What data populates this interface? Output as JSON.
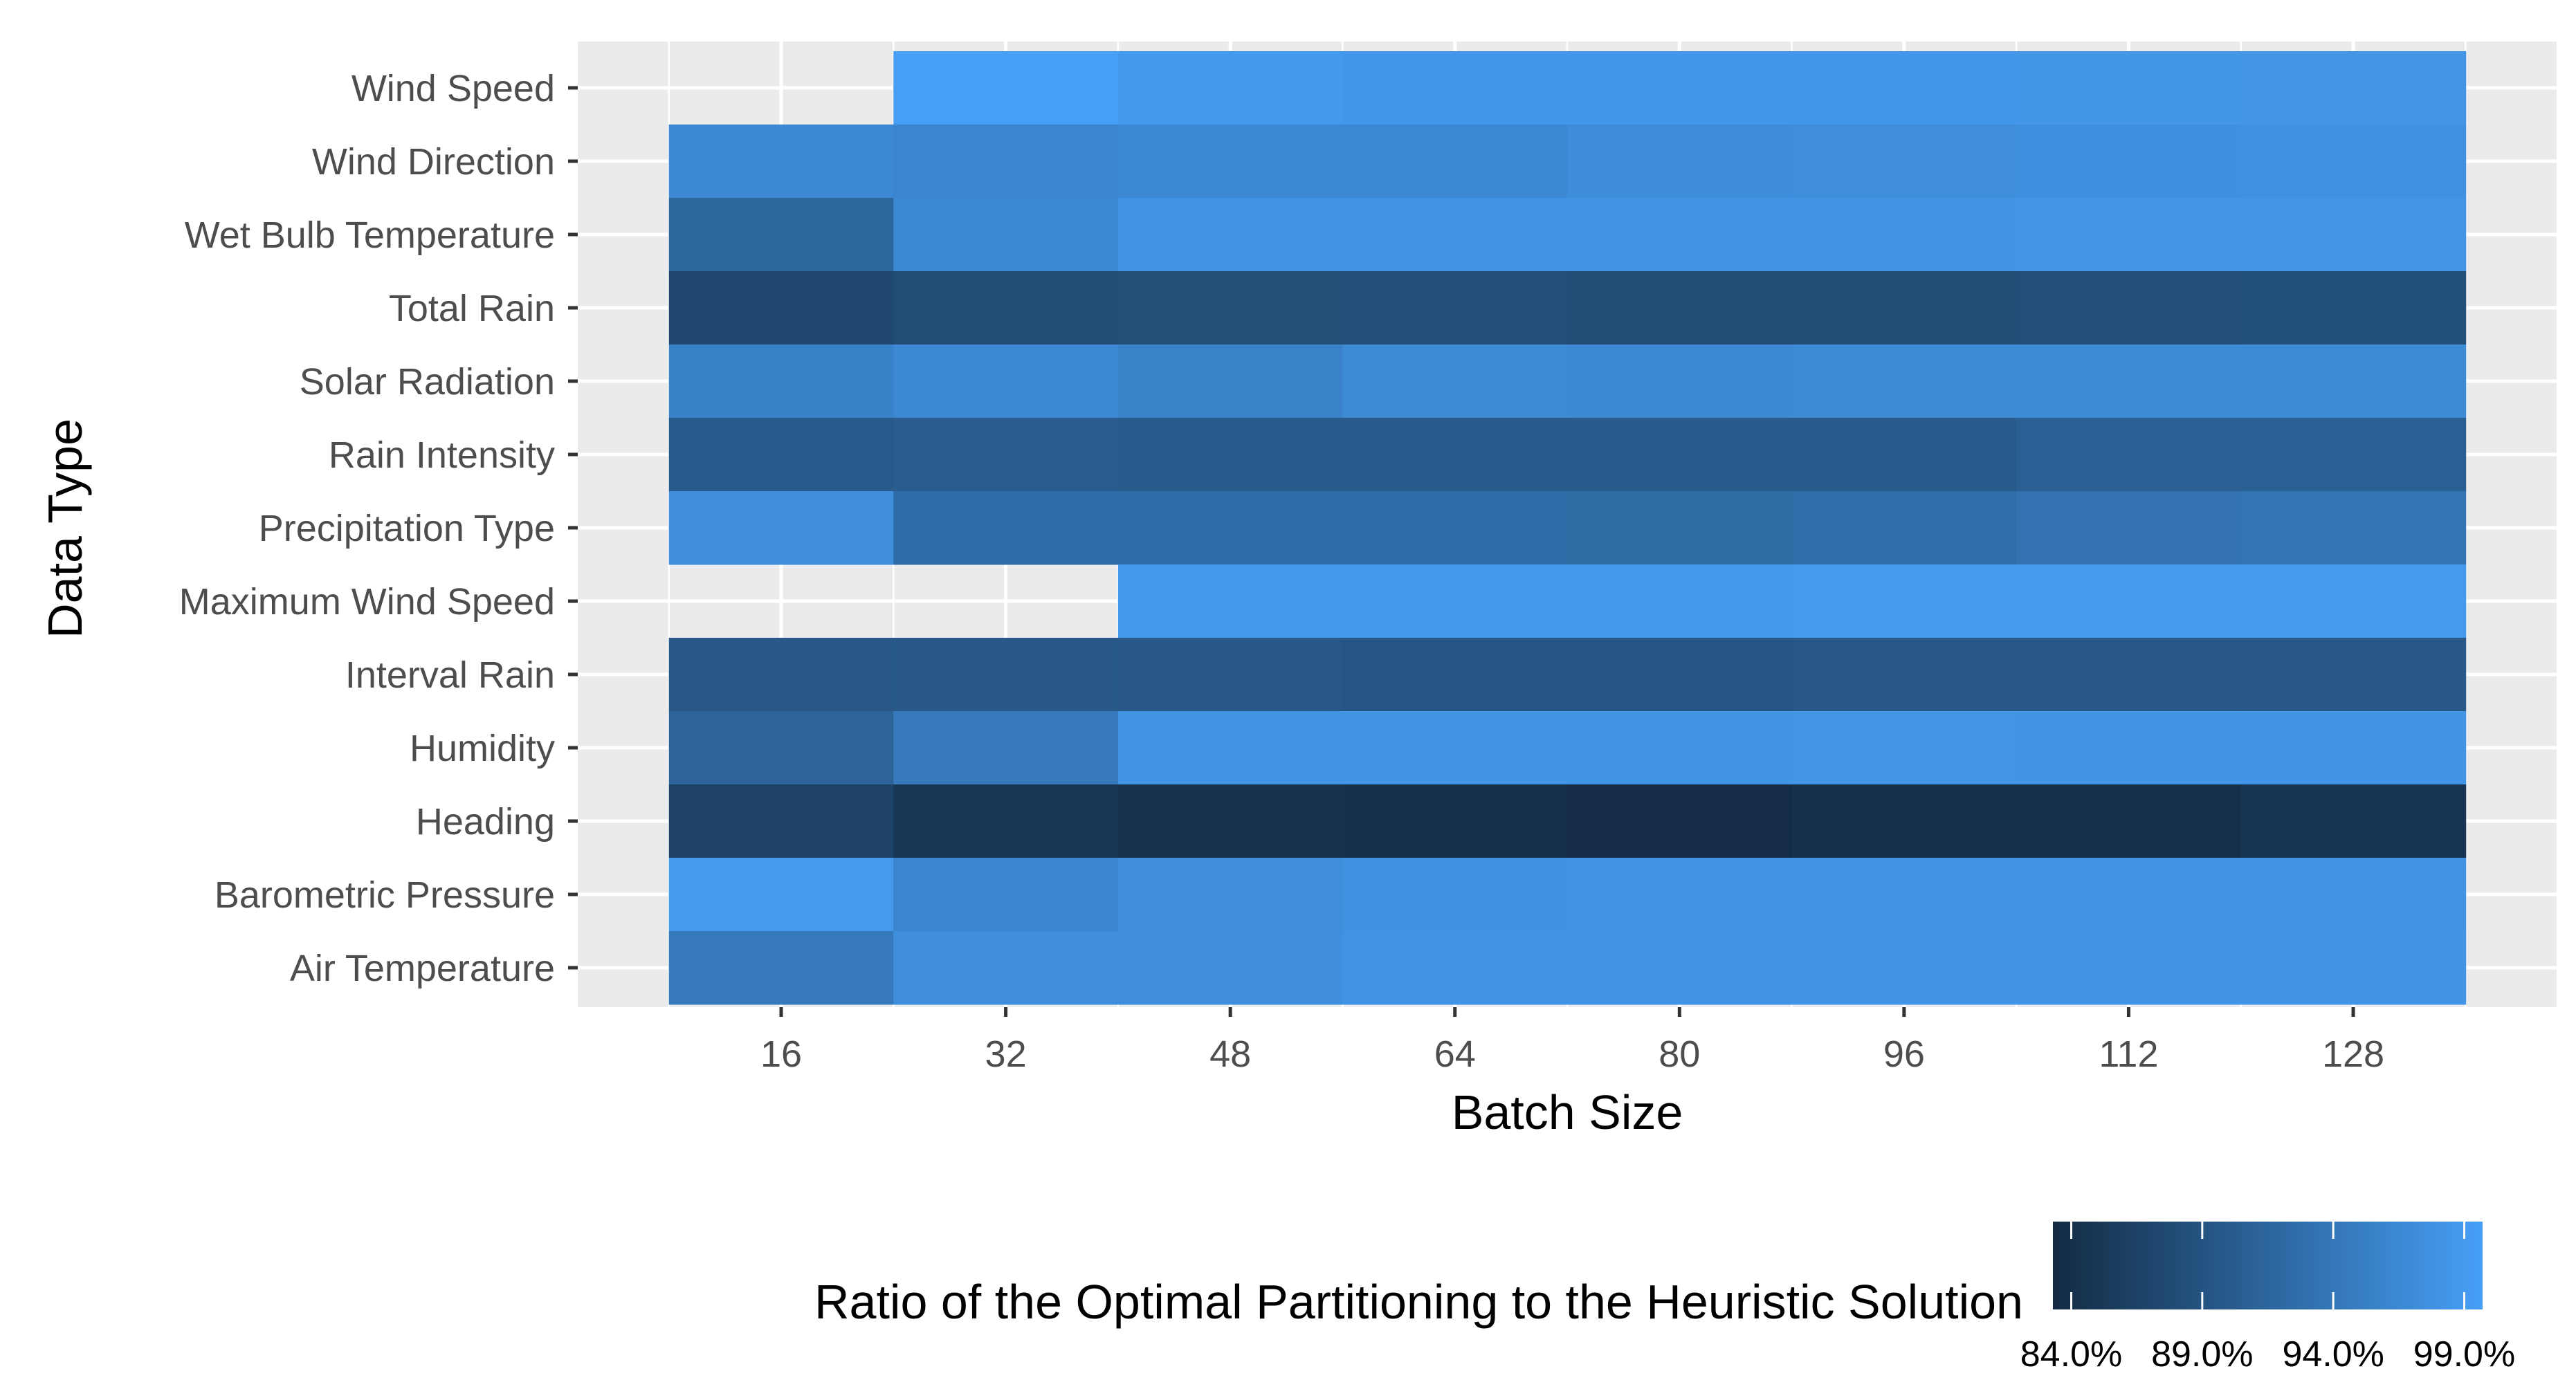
{
  "chart_data": {
    "type": "heatmap",
    "title": "",
    "xlabel": "Batch Size",
    "ylabel": "Data Type",
    "x": [
      16,
      32,
      48,
      64,
      80,
      96,
      112,
      128
    ],
    "x_ticks": [
      "16",
      "32",
      "48",
      "64",
      "80",
      "96",
      "112",
      "128"
    ],
    "y": [
      "Wind Speed",
      "Wind Direction",
      "Wet Bulb Temperature",
      "Total Rain",
      "Solar Radiation",
      "Rain Intensity",
      "Precipitation Type",
      "Maximum Wind Speed",
      "Interval Rain",
      "Humidity",
      "Heading",
      "Barometric Pressure",
      "Air Temperature"
    ],
    "values": [
      [
        null,
        99.6,
        98.8,
        98.6,
        98.6,
        98.6,
        98.5,
        98.3
      ],
      [
        96.5,
        96.0,
        96.5,
        96.3,
        97.2,
        97.3,
        97.6,
        97.8
      ],
      [
        91.5,
        96.3,
        98.0,
        98.1,
        98.2,
        98.2,
        98.3,
        98.3
      ],
      [
        87.3,
        88.0,
        88.2,
        88.3,
        88.0,
        88.0,
        88.3,
        88.4
      ],
      [
        95.5,
        96.5,
        95.8,
        96.7,
        96.4,
        96.7,
        96.7,
        96.7
      ],
      [
        90.0,
        90.3,
        90.0,
        90.0,
        90.0,
        90.0,
        90.6,
        90.6
      ],
      [
        97.3,
        92.5,
        92.5,
        92.5,
        92.3,
        92.6,
        93.3,
        93.6
      ],
      [
        null,
        null,
        98.8,
        98.8,
        98.8,
        99.0,
        99.0,
        99.0
      ],
      [
        89.6,
        89.6,
        89.6,
        89.4,
        89.4,
        89.6,
        89.6,
        89.6
      ],
      [
        91.3,
        94.5,
        98.0,
        98.2,
        98.2,
        98.3,
        98.2,
        98.2
      ],
      [
        86.5,
        85.0,
        84.3,
        84.1,
        83.5,
        84.1,
        83.8,
        84.8
      ],
      [
        99.0,
        96.0,
        97.3,
        97.8,
        98.0,
        98.0,
        98.0,
        98.0
      ],
      [
        94.5,
        97.3,
        97.3,
        98.0,
        98.0,
        98.2,
        98.2,
        98.2
      ]
    ],
    "legend": {
      "title": "Ratio of the Optimal Partitioning to the Heuristic Solution",
      "ticks": [
        84,
        89,
        94,
        99
      ],
      "tick_labels": [
        "84.0%",
        "89.0%",
        "94.0%",
        "99.0%"
      ],
      "range": [
        83.3,
        99.7
      ],
      "low_color": "#132B43",
      "high_color": "#469FF6",
      "placement": "bottom-right"
    },
    "grid": true,
    "panel_background": "#EBEBEB"
  }
}
